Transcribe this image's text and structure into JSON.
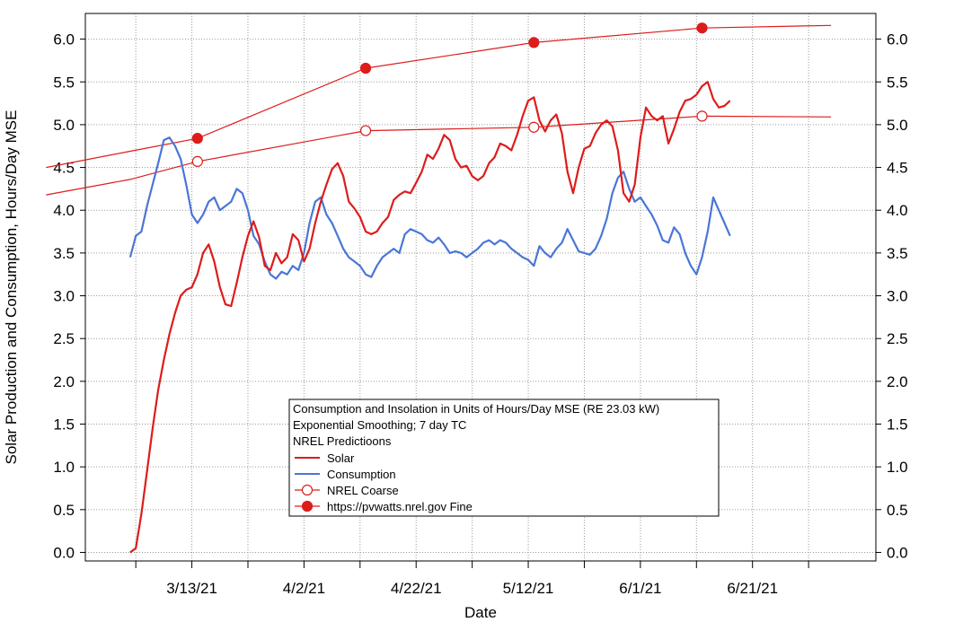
{
  "chart_data": {
    "type": "line",
    "xlabel": "Date",
    "ylabel": "Solar Production and Consumption, Hours/Day MSE",
    "x_start": "2021-03-02",
    "x_end": "2021-07-08",
    "xlim": [
      "2021-02-22",
      "2021-07-13"
    ],
    "ylim": [
      -0.1,
      6.3
    ],
    "y_ticks": [
      0.0,
      0.5,
      1.0,
      1.5,
      2.0,
      2.5,
      3.0,
      3.5,
      4.0,
      4.5,
      5.0,
      5.5,
      6.0
    ],
    "y_tick_labels": [
      "0.0",
      "0.5",
      "1.0",
      "1.5",
      "2.0",
      "2.5",
      "3.0",
      "3.5",
      "4.0",
      "4.5",
      "5.0",
      "5.5",
      "6.0"
    ],
    "x_minor_ticks": [
      "2021-03-03",
      "2021-03-13",
      "2021-03-23",
      "2021-04-02",
      "2021-04-12",
      "2021-04-22",
      "2021-05-02",
      "2021-05-12",
      "2021-05-22",
      "2021-06-01",
      "2021-06-11",
      "2021-06-21",
      "2021-07-01"
    ],
    "x_ticks": [
      "2021-03-13",
      "2021-04-02",
      "2021-04-22",
      "2021-05-12",
      "2021-06-01",
      "2021-06-21"
    ],
    "x_tick_labels": [
      "3/13/21",
      "4/2/21",
      "4/22/21",
      "5/12/21",
      "6/1/21",
      "6/21/21"
    ],
    "grid": true,
    "right_axis": true,
    "legend_title_lines": [
      "Consumption and Insolation in Units of Hours/Day MSE (RE 23.03 kW)",
      "Exponential Smoothing; 7 day TC",
      "NREL Predictioons"
    ],
    "legend_position": "bottom-center",
    "series": [
      {
        "name": "Solar",
        "color": "#dd1c1c",
        "style": "line",
        "points": [
          [
            0,
            0.0
          ],
          [
            1,
            0.05
          ],
          [
            2,
            0.45
          ],
          [
            3,
            0.95
          ],
          [
            4,
            1.45
          ],
          [
            5,
            1.9
          ],
          [
            6,
            2.25
          ],
          [
            7,
            2.55
          ],
          [
            8,
            2.8
          ],
          [
            9,
            3.0
          ],
          [
            10,
            3.07
          ],
          [
            11,
            3.1
          ],
          [
            12,
            3.25
          ],
          [
            13,
            3.5
          ],
          [
            14,
            3.6
          ],
          [
            15,
            3.4
          ],
          [
            16,
            3.1
          ],
          [
            17,
            2.9
          ],
          [
            18,
            2.88
          ],
          [
            19,
            3.15
          ],
          [
            20,
            3.45
          ],
          [
            21,
            3.7
          ],
          [
            22,
            3.87
          ],
          [
            23,
            3.68
          ],
          [
            24,
            3.35
          ],
          [
            25,
            3.3
          ],
          [
            26,
            3.5
          ],
          [
            27,
            3.38
          ],
          [
            28,
            3.45
          ],
          [
            29,
            3.72
          ],
          [
            30,
            3.65
          ],
          [
            31,
            3.4
          ],
          [
            32,
            3.55
          ],
          [
            33,
            3.85
          ],
          [
            34,
            4.1
          ],
          [
            35,
            4.3
          ],
          [
            36,
            4.48
          ],
          [
            37,
            4.55
          ],
          [
            38,
            4.4
          ],
          [
            39,
            4.1
          ],
          [
            40,
            4.02
          ],
          [
            41,
            3.92
          ],
          [
            42,
            3.75
          ],
          [
            43,
            3.72
          ],
          [
            44,
            3.75
          ],
          [
            45,
            3.85
          ],
          [
            46,
            3.92
          ],
          [
            47,
            4.12
          ],
          [
            48,
            4.18
          ],
          [
            49,
            4.22
          ],
          [
            50,
            4.2
          ],
          [
            51,
            4.32
          ],
          [
            52,
            4.45
          ],
          [
            53,
            4.65
          ],
          [
            54,
            4.6
          ],
          [
            55,
            4.72
          ],
          [
            56,
            4.88
          ],
          [
            57,
            4.82
          ],
          [
            58,
            4.6
          ],
          [
            59,
            4.5
          ],
          [
            60,
            4.52
          ],
          [
            61,
            4.4
          ],
          [
            62,
            4.35
          ],
          [
            63,
            4.4
          ],
          [
            64,
            4.55
          ],
          [
            65,
            4.62
          ],
          [
            66,
            4.78
          ],
          [
            67,
            4.75
          ],
          [
            68,
            4.7
          ],
          [
            69,
            4.88
          ],
          [
            70,
            5.1
          ],
          [
            71,
            5.28
          ],
          [
            72,
            5.32
          ],
          [
            73,
            5.05
          ],
          [
            74,
            4.92
          ],
          [
            75,
            5.05
          ],
          [
            76,
            5.12
          ],
          [
            77,
            4.9
          ],
          [
            78,
            4.45
          ],
          [
            79,
            4.2
          ],
          [
            80,
            4.5
          ],
          [
            81,
            4.72
          ],
          [
            82,
            4.75
          ],
          [
            83,
            4.9
          ],
          [
            84,
            5.0
          ],
          [
            85,
            5.05
          ],
          [
            86,
            4.98
          ],
          [
            87,
            4.7
          ],
          [
            88,
            4.2
          ],
          [
            89,
            4.1
          ],
          [
            90,
            4.3
          ],
          [
            91,
            4.85
          ],
          [
            92,
            5.2
          ],
          [
            93,
            5.1
          ],
          [
            94,
            5.05
          ],
          [
            95,
            5.1
          ],
          [
            96,
            4.78
          ],
          [
            97,
            4.95
          ],
          [
            98,
            5.15
          ],
          [
            99,
            5.28
          ],
          [
            100,
            5.3
          ],
          [
            101,
            5.35
          ],
          [
            102,
            5.45
          ],
          [
            103,
            5.5
          ],
          [
            104,
            5.3
          ],
          [
            105,
            5.2
          ],
          [
            106,
            5.22
          ],
          [
            107,
            5.28
          ]
        ]
      },
      {
        "name": "Consumption",
        "color": "#4a76d6",
        "style": "line",
        "points": [
          [
            0,
            3.45
          ],
          [
            1,
            3.7
          ],
          [
            2,
            3.75
          ],
          [
            3,
            4.05
          ],
          [
            4,
            4.3
          ],
          [
            5,
            4.55
          ],
          [
            6,
            4.82
          ],
          [
            7,
            4.85
          ],
          [
            8,
            4.75
          ],
          [
            9,
            4.6
          ],
          [
            10,
            4.3
          ],
          [
            11,
            3.95
          ],
          [
            12,
            3.85
          ],
          [
            13,
            3.95
          ],
          [
            14,
            4.1
          ],
          [
            15,
            4.15
          ],
          [
            16,
            4.0
          ],
          [
            17,
            4.05
          ],
          [
            18,
            4.1
          ],
          [
            19,
            4.25
          ],
          [
            20,
            4.2
          ],
          [
            21,
            4.0
          ],
          [
            22,
            3.7
          ],
          [
            23,
            3.6
          ],
          [
            24,
            3.4
          ],
          [
            25,
            3.25
          ],
          [
            26,
            3.2
          ],
          [
            27,
            3.28
          ],
          [
            28,
            3.25
          ],
          [
            29,
            3.35
          ],
          [
            30,
            3.3
          ],
          [
            31,
            3.5
          ],
          [
            32,
            3.85
          ],
          [
            33,
            4.1
          ],
          [
            34,
            4.15
          ],
          [
            35,
            3.95
          ],
          [
            36,
            3.85
          ],
          [
            37,
            3.7
          ],
          [
            38,
            3.55
          ],
          [
            39,
            3.45
          ],
          [
            40,
            3.4
          ],
          [
            41,
            3.35
          ],
          [
            42,
            3.25
          ],
          [
            43,
            3.22
          ],
          [
            44,
            3.35
          ],
          [
            45,
            3.45
          ],
          [
            46,
            3.5
          ],
          [
            47,
            3.55
          ],
          [
            48,
            3.5
          ],
          [
            49,
            3.72
          ],
          [
            50,
            3.78
          ],
          [
            51,
            3.75
          ],
          [
            52,
            3.72
          ],
          [
            53,
            3.65
          ],
          [
            54,
            3.62
          ],
          [
            55,
            3.68
          ],
          [
            56,
            3.6
          ],
          [
            57,
            3.5
          ],
          [
            58,
            3.52
          ],
          [
            59,
            3.5
          ],
          [
            60,
            3.45
          ],
          [
            61,
            3.5
          ],
          [
            62,
            3.55
          ],
          [
            63,
            3.62
          ],
          [
            64,
            3.65
          ],
          [
            65,
            3.6
          ],
          [
            66,
            3.65
          ],
          [
            67,
            3.62
          ],
          [
            68,
            3.55
          ],
          [
            69,
            3.5
          ],
          [
            70,
            3.45
          ],
          [
            71,
            3.42
          ],
          [
            72,
            3.35
          ],
          [
            73,
            3.58
          ],
          [
            74,
            3.5
          ],
          [
            75,
            3.45
          ],
          [
            76,
            3.55
          ],
          [
            77,
            3.62
          ],
          [
            78,
            3.78
          ],
          [
            79,
            3.65
          ],
          [
            80,
            3.52
          ],
          [
            81,
            3.5
          ],
          [
            82,
            3.48
          ],
          [
            83,
            3.55
          ],
          [
            84,
            3.7
          ],
          [
            85,
            3.9
          ],
          [
            86,
            4.2
          ],
          [
            87,
            4.38
          ],
          [
            88,
            4.45
          ],
          [
            89,
            4.25
          ],
          [
            90,
            4.1
          ],
          [
            91,
            4.15
          ],
          [
            92,
            4.05
          ],
          [
            93,
            3.95
          ],
          [
            94,
            3.82
          ],
          [
            95,
            3.65
          ],
          [
            96,
            3.62
          ],
          [
            97,
            3.8
          ],
          [
            98,
            3.72
          ],
          [
            99,
            3.5
          ],
          [
            100,
            3.35
          ],
          [
            101,
            3.25
          ],
          [
            102,
            3.45
          ],
          [
            103,
            3.75
          ],
          [
            104,
            4.15
          ],
          [
            105,
            4.0
          ],
          [
            106,
            3.85
          ],
          [
            107,
            3.7
          ]
        ]
      },
      {
        "name": "NREL Coarse",
        "color": "#dd1c1c",
        "style": "line-open-markers",
        "line_points": [
          [
            -15,
            4.18
          ],
          [
            0,
            4.36
          ],
          [
            12,
            4.57
          ],
          [
            42,
            4.93
          ],
          [
            72,
            4.97
          ],
          [
            102,
            5.1
          ],
          [
            125,
            5.09
          ]
        ],
        "markers": [
          [
            12,
            4.57
          ],
          [
            42,
            4.93
          ],
          [
            72,
            4.97
          ],
          [
            102,
            5.1
          ]
        ]
      },
      {
        "name": "https://pvwatts.nrel.gov Fine",
        "color": "#dd1c1c",
        "style": "line-filled-markers",
        "line_points": [
          [
            -15,
            4.5
          ],
          [
            0,
            4.69
          ],
          [
            12,
            4.84
          ],
          [
            42,
            5.66
          ],
          [
            72,
            5.96
          ],
          [
            102,
            6.13
          ],
          [
            125,
            6.16
          ]
        ],
        "markers": [
          [
            12,
            4.84
          ],
          [
            42,
            5.66
          ],
          [
            72,
            5.96
          ],
          [
            102,
            6.13
          ]
        ]
      }
    ]
  }
}
